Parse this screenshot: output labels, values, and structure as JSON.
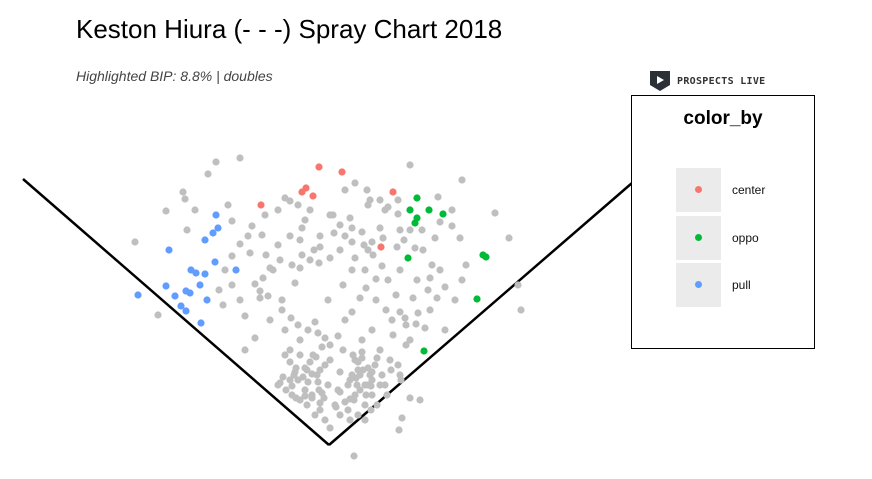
{
  "chart_data": {
    "type": "scatter",
    "title": "Keston Hiura (- - -) Spray Chart 2018",
    "subtitle": "Highlighted BIP: 8.8% | doubles",
    "legend": {
      "title": "color_by",
      "placement": "right",
      "entries": [
        {
          "label": "center",
          "color": "#F8766D"
        },
        {
          "label": "oppo",
          "color": "#00BA38"
        },
        {
          "label": "pull",
          "color": "#619CFF"
        }
      ]
    },
    "background_color": "#BFBFBF",
    "series": [
      {
        "key": "center",
        "points": [
          [
            319,
            167
          ],
          [
            342,
            172
          ],
          [
            306,
            188
          ],
          [
            302,
            192
          ],
          [
            313,
            196
          ],
          [
            261,
            205
          ],
          [
            393,
            192
          ],
          [
            381,
            247
          ]
        ]
      },
      {
        "key": "oppo",
        "points": [
          [
            417,
            198
          ],
          [
            410,
            210
          ],
          [
            429,
            210
          ],
          [
            443,
            214
          ],
          [
            417,
            218
          ],
          [
            415,
            223
          ],
          [
            408,
            258
          ],
          [
            483,
            255
          ],
          [
            486,
            257
          ],
          [
            477,
            299
          ],
          [
            424,
            351
          ]
        ]
      },
      {
        "key": "pull",
        "points": [
          [
            216,
            215
          ],
          [
            213,
            233
          ],
          [
            218,
            228
          ],
          [
            169,
            250
          ],
          [
            205,
            240
          ],
          [
            215,
            262
          ],
          [
            236,
            270
          ],
          [
            196,
            273
          ],
          [
            191,
            270
          ],
          [
            138,
            295
          ],
          [
            166,
            286
          ],
          [
            175,
            296
          ],
          [
            190,
            293
          ],
          [
            186,
            291
          ],
          [
            181,
            306
          ],
          [
            200,
            285
          ],
          [
            207,
            300
          ],
          [
            186,
            311
          ],
          [
            201,
            323
          ],
          [
            205,
            274
          ]
        ]
      }
    ],
    "background_points": [
      [
        240,
        158
      ],
      [
        216,
        162
      ],
      [
        208,
        174
      ],
      [
        183,
        192
      ],
      [
        185,
        199
      ],
      [
        166,
        211
      ],
      [
        135,
        242
      ],
      [
        158,
        315
      ],
      [
        187,
        230
      ],
      [
        195,
        210
      ],
      [
        228,
        205
      ],
      [
        232,
        221
      ],
      [
        248,
        236
      ],
      [
        250,
        253
      ],
      [
        262,
        235
      ],
      [
        273,
        270
      ],
      [
        260,
        291
      ],
      [
        240,
        300
      ],
      [
        245,
        316
      ],
      [
        260,
        298
      ],
      [
        282,
        300
      ],
      [
        292,
        265
      ],
      [
        300,
        240
      ],
      [
        305,
        220
      ],
      [
        330,
        215
      ],
      [
        320,
        247
      ],
      [
        319,
        263
      ],
      [
        300,
        268
      ],
      [
        295,
        283
      ],
      [
        310,
        260
      ],
      [
        330,
        258
      ],
      [
        352,
        242
      ],
      [
        362,
        232
      ],
      [
        368,
        250
      ],
      [
        380,
        228
      ],
      [
        385,
        210
      ],
      [
        398,
        200
      ],
      [
        400,
        230
      ],
      [
        382,
        266
      ],
      [
        376,
        279
      ],
      [
        365,
        270
      ],
      [
        352,
        270
      ],
      [
        343,
        285
      ],
      [
        328,
        300
      ],
      [
        315,
        322
      ],
      [
        300,
        340
      ],
      [
        285,
        355
      ],
      [
        278,
        385
      ],
      [
        292,
        395
      ],
      [
        298,
        380
      ],
      [
        305,
        368
      ],
      [
        310,
        362
      ],
      [
        316,
        357
      ],
      [
        320,
        370
      ],
      [
        295,
        372
      ],
      [
        305,
        390
      ],
      [
        312,
        395
      ],
      [
        318,
        382
      ],
      [
        290,
        380
      ],
      [
        300,
        400
      ],
      [
        307,
        405
      ],
      [
        320,
        410
      ],
      [
        325,
        420
      ],
      [
        330,
        428
      ],
      [
        340,
        415
      ],
      [
        345,
        402
      ],
      [
        355,
        395
      ],
      [
        350,
        380
      ],
      [
        358,
        370
      ],
      [
        362,
        358
      ],
      [
        370,
        375
      ],
      [
        375,
        365
      ],
      [
        380,
        350
      ],
      [
        390,
        360
      ],
      [
        380,
        385
      ],
      [
        372,
        395
      ],
      [
        365,
        405
      ],
      [
        360,
        390
      ],
      [
        368,
        385
      ],
      [
        360,
        375
      ],
      [
        355,
        360
      ],
      [
        353,
        355
      ],
      [
        362,
        352
      ],
      [
        372,
        380
      ],
      [
        385,
        385
      ],
      [
        400,
        375
      ],
      [
        410,
        398
      ],
      [
        420,
        400
      ],
      [
        402,
        418
      ],
      [
        398,
        365
      ],
      [
        393,
        335
      ],
      [
        405,
        318
      ],
      [
        418,
        313
      ],
      [
        430,
        310
      ],
      [
        437,
        298
      ],
      [
        445,
        287
      ],
      [
        440,
        270
      ],
      [
        432,
        265
      ],
      [
        423,
        250
      ],
      [
        415,
        248
      ],
      [
        410,
        230
      ],
      [
        422,
        230
      ],
      [
        435,
        238
      ],
      [
        440,
        222
      ],
      [
        452,
        226
      ],
      [
        460,
        238
      ],
      [
        466,
        265
      ],
      [
        462,
        280
      ],
      [
        455,
        300
      ],
      [
        445,
        330
      ],
      [
        425,
        328
      ],
      [
        410,
        340
      ],
      [
        396,
        295
      ],
      [
        388,
        280
      ],
      [
        400,
        270
      ],
      [
        417,
        280
      ],
      [
        428,
        290
      ],
      [
        430,
        278
      ],
      [
        413,
        298
      ],
      [
        400,
        312
      ],
      [
        406,
        325
      ],
      [
        416,
        324
      ],
      [
        495,
        213
      ],
      [
        509,
        238
      ],
      [
        518,
        285
      ],
      [
        521,
        310
      ],
      [
        462,
        180
      ],
      [
        410,
        165
      ],
      [
        438,
        197
      ],
      [
        452,
        210
      ],
      [
        368,
        205
      ],
      [
        352,
        228
      ],
      [
        345,
        236
      ],
      [
        334,
        233
      ],
      [
        320,
        236
      ],
      [
        302,
        228
      ],
      [
        290,
        236
      ],
      [
        278,
        245
      ],
      [
        270,
        268
      ],
      [
        263,
        278
      ],
      [
        255,
        284
      ],
      [
        268,
        296
      ],
      [
        282,
        310
      ],
      [
        291,
        318
      ],
      [
        298,
        325
      ],
      [
        308,
        330
      ],
      [
        318,
        333
      ],
      [
        325,
        338
      ],
      [
        330,
        345
      ],
      [
        338,
        336
      ],
      [
        345,
        320
      ],
      [
        352,
        312
      ],
      [
        360,
        298
      ],
      [
        366,
        288
      ],
      [
        376,
        300
      ],
      [
        386,
        310
      ],
      [
        392,
        320
      ],
      [
        372,
        330
      ],
      [
        362,
        340
      ],
      [
        343,
        350
      ],
      [
        330,
        360
      ],
      [
        322,
        347
      ],
      [
        285,
        330
      ],
      [
        270,
        320
      ],
      [
        255,
        338
      ],
      [
        245,
        350
      ],
      [
        266,
        255
      ],
      [
        280,
        260
      ],
      [
        302,
        255
      ],
      [
        314,
        250
      ],
      [
        340,
        250
      ],
      [
        355,
        258
      ],
      [
        373,
        255
      ],
      [
        397,
        247
      ],
      [
        383,
        238
      ],
      [
        372,
        242
      ],
      [
        364,
        245
      ],
      [
        350,
        218
      ],
      [
        340,
        225
      ],
      [
        333,
        215
      ],
      [
        310,
        210
      ],
      [
        298,
        205
      ],
      [
        290,
        201
      ],
      [
        355,
        183
      ],
      [
        367,
        190
      ],
      [
        370,
        200
      ],
      [
        380,
        200
      ],
      [
        388,
        207
      ],
      [
        398,
        214
      ],
      [
        404,
        240
      ],
      [
        345,
        190
      ],
      [
        285,
        198
      ],
      [
        278,
        210
      ],
      [
        265,
        215
      ],
      [
        252,
        226
      ],
      [
        240,
        244
      ],
      [
        232,
        256
      ],
      [
        225,
        270
      ],
      [
        232,
        285
      ],
      [
        223,
        305
      ],
      [
        219,
        290
      ],
      [
        354,
        456
      ],
      [
        336,
        407
      ],
      [
        399,
        430
      ],
      [
        406,
        345
      ],
      [
        290,
        350
      ],
      [
        312,
        374
      ],
      [
        292,
        386
      ],
      [
        303,
        377
      ],
      [
        296,
        368
      ],
      [
        308,
        382
      ],
      [
        319,
        390
      ],
      [
        324,
        398
      ],
      [
        335,
        405
      ],
      [
        348,
        385
      ],
      [
        356,
        378
      ],
      [
        368,
        368
      ],
      [
        377,
        358
      ],
      [
        363,
        370
      ],
      [
        372,
        372
      ],
      [
        357,
        385
      ],
      [
        366,
        395
      ],
      [
        350,
        399
      ],
      [
        320,
        403
      ],
      [
        305,
        396
      ],
      [
        290,
        362
      ],
      [
        283,
        377
      ],
      [
        280,
        383
      ],
      [
        300,
        355
      ],
      [
        313,
        355
      ],
      [
        325,
        365
      ],
      [
        340,
        372
      ],
      [
        352,
        375
      ],
      [
        365,
        385
      ],
      [
        354,
        400
      ],
      [
        348,
        410
      ],
      [
        340,
        392
      ],
      [
        328,
        385
      ],
      [
        317,
        375
      ],
      [
        307,
        370
      ],
      [
        294,
        375
      ],
      [
        286,
        390
      ],
      [
        296,
        398
      ],
      [
        312,
        398
      ],
      [
        322,
        393
      ],
      [
        338,
        390
      ],
      [
        358,
        362
      ],
      [
        371,
        386
      ],
      [
        382,
        375
      ],
      [
        391,
        370
      ],
      [
        401,
        380
      ],
      [
        387,
        395
      ],
      [
        377,
        405
      ],
      [
        371,
        410
      ],
      [
        365,
        420
      ],
      [
        358,
        415
      ],
      [
        350,
        420
      ],
      [
        315,
        415
      ]
    ]
  },
  "logo": {
    "text": "PROSPECTS LIVE"
  }
}
